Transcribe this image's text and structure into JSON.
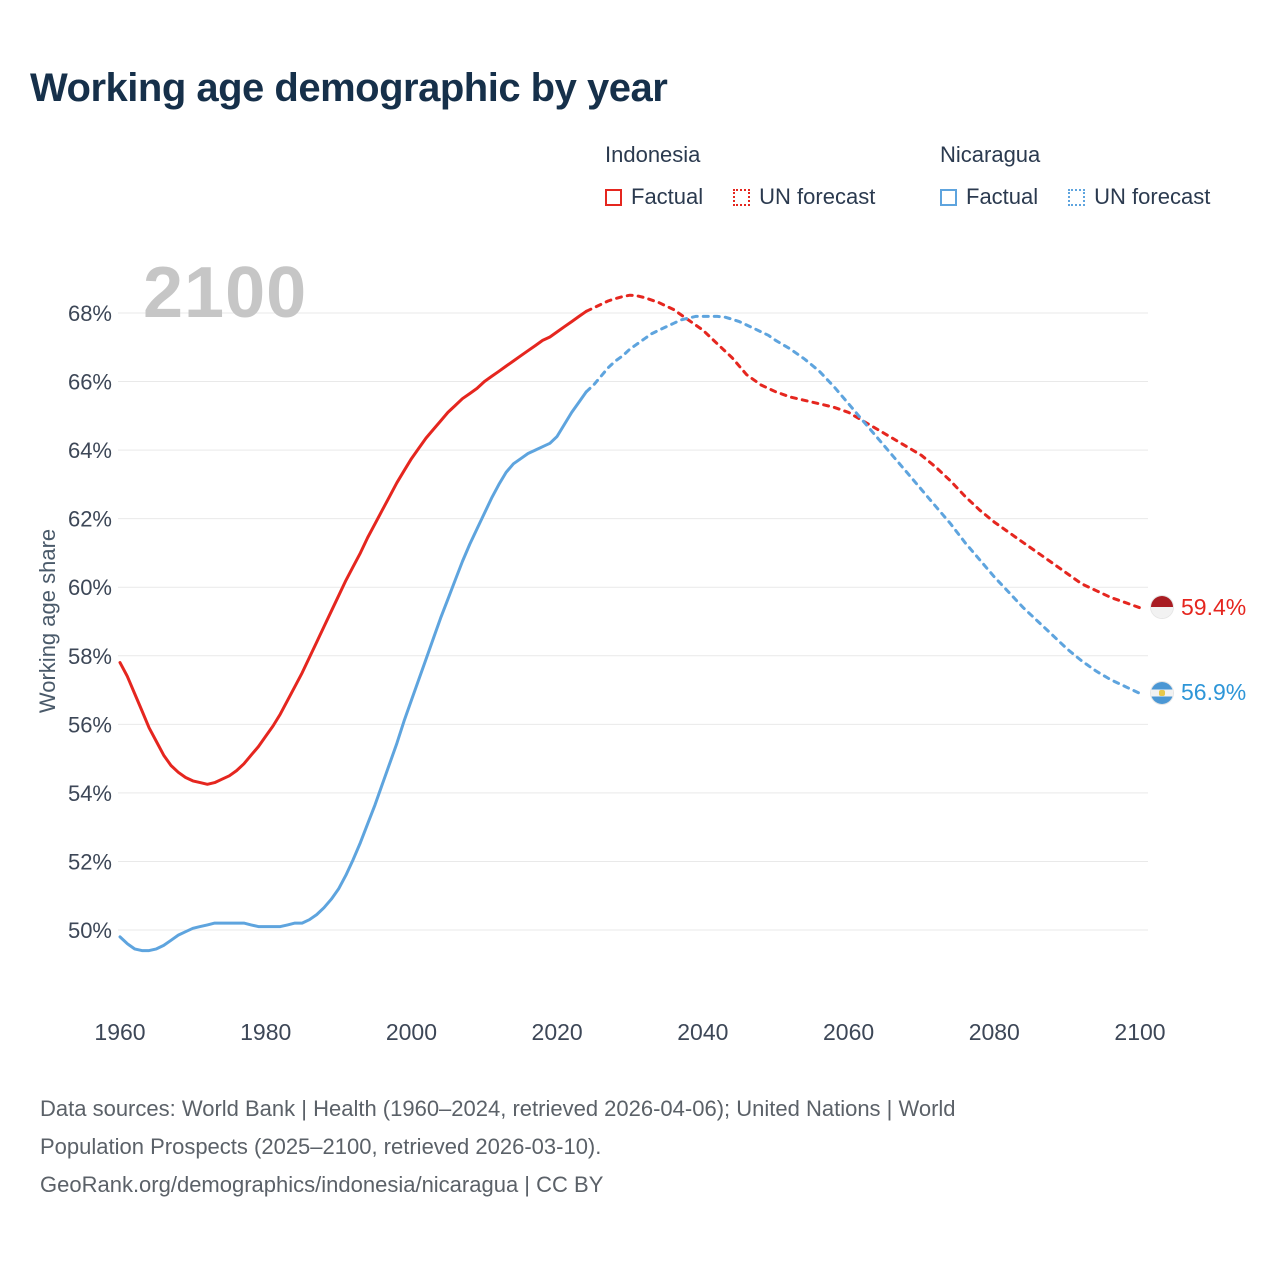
{
  "chart_data": {
    "type": "line",
    "title": "Working age demographic by year",
    "xlabel": "",
    "ylabel": "Working age share",
    "watermark": "2100",
    "xlim": [
      1960,
      2100
    ],
    "ylim": [
      49,
      69
    ],
    "xticks": [
      1960,
      1980,
      2000,
      2020,
      2040,
      2060,
      2080,
      2100
    ],
    "yticks": [
      50,
      52,
      54,
      56,
      58,
      60,
      62,
      64,
      66,
      68
    ],
    "ytick_suffix": "%",
    "grid": "horizontal",
    "legend_position": "top-right",
    "legend": {
      "groups": [
        {
          "label": "Indonesia",
          "color": "#e5261f",
          "items": [
            {
              "label": "Factual",
              "style": "solid"
            },
            {
              "label": "UN forecast",
              "style": "dotted"
            }
          ]
        },
        {
          "label": "Nicaragua",
          "color": "#5ea4de",
          "items": [
            {
              "label": "Factual",
              "style": "solid"
            },
            {
              "label": "UN forecast",
              "style": "dotted"
            }
          ]
        }
      ]
    },
    "series": [
      {
        "name": "Indonesia — Factual",
        "color": "#e5261f",
        "dash": "solid",
        "points": [
          [
            1960,
            57.8
          ],
          [
            1961,
            57.4
          ],
          [
            1962,
            56.9
          ],
          [
            1963,
            56.4
          ],
          [
            1964,
            55.9
          ],
          [
            1965,
            55.5
          ],
          [
            1966,
            55.1
          ],
          [
            1967,
            54.8
          ],
          [
            1968,
            54.6
          ],
          [
            1969,
            54.45
          ],
          [
            1970,
            54.35
          ],
          [
            1971,
            54.3
          ],
          [
            1972,
            54.25
          ],
          [
            1973,
            54.3
          ],
          [
            1974,
            54.4
          ],
          [
            1975,
            54.5
          ],
          [
            1976,
            54.65
          ],
          [
            1977,
            54.85
          ],
          [
            1978,
            55.1
          ],
          [
            1979,
            55.35
          ],
          [
            1980,
            55.65
          ],
          [
            1981,
            55.95
          ],
          [
            1982,
            56.3
          ],
          [
            1983,
            56.7
          ],
          [
            1984,
            57.1
          ],
          [
            1985,
            57.5
          ],
          [
            1986,
            57.95
          ],
          [
            1987,
            58.4
          ],
          [
            1988,
            58.85
          ],
          [
            1989,
            59.3
          ],
          [
            1990,
            59.75
          ],
          [
            1991,
            60.2
          ],
          [
            1992,
            60.6
          ],
          [
            1993,
            61.0
          ],
          [
            1994,
            61.45
          ],
          [
            1995,
            61.85
          ],
          [
            1996,
            62.25
          ],
          [
            1997,
            62.65
          ],
          [
            1998,
            63.05
          ],
          [
            1999,
            63.4
          ],
          [
            2000,
            63.75
          ],
          [
            2001,
            64.05
          ],
          [
            2002,
            64.35
          ],
          [
            2003,
            64.6
          ],
          [
            2004,
            64.85
          ],
          [
            2005,
            65.1
          ],
          [
            2006,
            65.3
          ],
          [
            2007,
            65.5
          ],
          [
            2008,
            65.65
          ],
          [
            2009,
            65.8
          ],
          [
            2010,
            66.0
          ],
          [
            2011,
            66.15
          ],
          [
            2012,
            66.3
          ],
          [
            2013,
            66.45
          ],
          [
            2014,
            66.6
          ],
          [
            2015,
            66.75
          ],
          [
            2016,
            66.9
          ],
          [
            2017,
            67.05
          ],
          [
            2018,
            67.2
          ],
          [
            2019,
            67.3
          ],
          [
            2020,
            67.45
          ],
          [
            2021,
            67.6
          ],
          [
            2022,
            67.75
          ],
          [
            2023,
            67.9
          ],
          [
            2024,
            68.05
          ]
        ]
      },
      {
        "name": "Indonesia — UN forecast",
        "color": "#e5261f",
        "dash": "dashed",
        "points": [
          [
            2024,
            68.05
          ],
          [
            2025,
            68.15
          ],
          [
            2026,
            68.25
          ],
          [
            2027,
            68.35
          ],
          [
            2028,
            68.42
          ],
          [
            2029,
            68.48
          ],
          [
            2030,
            68.52
          ],
          [
            2031,
            68.5
          ],
          [
            2032,
            68.45
          ],
          [
            2034,
            68.3
          ],
          [
            2036,
            68.1
          ],
          [
            2038,
            67.8
          ],
          [
            2040,
            67.5
          ],
          [
            2042,
            67.1
          ],
          [
            2044,
            66.7
          ],
          [
            2046,
            66.2
          ],
          [
            2048,
            65.9
          ],
          [
            2050,
            65.7
          ],
          [
            2052,
            65.55
          ],
          [
            2054,
            65.45
          ],
          [
            2056,
            65.35
          ],
          [
            2058,
            65.25
          ],
          [
            2060,
            65.1
          ],
          [
            2062,
            64.85
          ],
          [
            2064,
            64.6
          ],
          [
            2066,
            64.35
          ],
          [
            2068,
            64.1
          ],
          [
            2070,
            63.85
          ],
          [
            2072,
            63.5
          ],
          [
            2074,
            63.1
          ],
          [
            2076,
            62.65
          ],
          [
            2078,
            62.25
          ],
          [
            2080,
            61.9
          ],
          [
            2082,
            61.6
          ],
          [
            2084,
            61.3
          ],
          [
            2086,
            61.0
          ],
          [
            2088,
            60.7
          ],
          [
            2090,
            60.4
          ],
          [
            2092,
            60.1
          ],
          [
            2094,
            59.9
          ],
          [
            2096,
            59.7
          ],
          [
            2098,
            59.55
          ],
          [
            2100,
            59.4
          ]
        ]
      },
      {
        "name": "Nicaragua — Factual",
        "color": "#5ea4de",
        "dash": "solid",
        "points": [
          [
            1960,
            49.8
          ],
          [
            1961,
            49.6
          ],
          [
            1962,
            49.45
          ],
          [
            1963,
            49.4
          ],
          [
            1964,
            49.4
          ],
          [
            1965,
            49.45
          ],
          [
            1966,
            49.55
          ],
          [
            1967,
            49.7
          ],
          [
            1968,
            49.85
          ],
          [
            1969,
            49.95
          ],
          [
            1970,
            50.05
          ],
          [
            1971,
            50.1
          ],
          [
            1972,
            50.15
          ],
          [
            1973,
            50.2
          ],
          [
            1974,
            50.2
          ],
          [
            1975,
            50.2
          ],
          [
            1976,
            50.2
          ],
          [
            1977,
            50.2
          ],
          [
            1978,
            50.15
          ],
          [
            1979,
            50.1
          ],
          [
            1980,
            50.1
          ],
          [
            1981,
            50.1
          ],
          [
            1982,
            50.1
          ],
          [
            1983,
            50.15
          ],
          [
            1984,
            50.2
          ],
          [
            1985,
            50.2
          ],
          [
            1986,
            50.3
          ],
          [
            1987,
            50.45
          ],
          [
            1988,
            50.65
          ],
          [
            1989,
            50.9
          ],
          [
            1990,
            51.2
          ],
          [
            1991,
            51.6
          ],
          [
            1992,
            52.05
          ],
          [
            1993,
            52.55
          ],
          [
            1994,
            53.1
          ],
          [
            1995,
            53.65
          ],
          [
            1996,
            54.25
          ],
          [
            1997,
            54.85
          ],
          [
            1998,
            55.45
          ],
          [
            1999,
            56.1
          ],
          [
            2000,
            56.7
          ],
          [
            2001,
            57.3
          ],
          [
            2002,
            57.9
          ],
          [
            2003,
            58.5
          ],
          [
            2004,
            59.1
          ],
          [
            2005,
            59.65
          ],
          [
            2006,
            60.2
          ],
          [
            2007,
            60.75
          ],
          [
            2008,
            61.25
          ],
          [
            2009,
            61.7
          ],
          [
            2010,
            62.15
          ],
          [
            2011,
            62.6
          ],
          [
            2012,
            63.0
          ],
          [
            2013,
            63.35
          ],
          [
            2014,
            63.6
          ],
          [
            2015,
            63.75
          ],
          [
            2016,
            63.9
          ],
          [
            2017,
            64.0
          ],
          [
            2018,
            64.1
          ],
          [
            2019,
            64.2
          ],
          [
            2020,
            64.4
          ],
          [
            2021,
            64.75
          ],
          [
            2022,
            65.1
          ],
          [
            2023,
            65.4
          ],
          [
            2024,
            65.7
          ]
        ]
      },
      {
        "name": "Nicaragua — UN forecast",
        "color": "#5ea4de",
        "dash": "dashed",
        "points": [
          [
            2024,
            65.7
          ],
          [
            2025,
            65.9
          ],
          [
            2026,
            66.15
          ],
          [
            2027,
            66.4
          ],
          [
            2028,
            66.6
          ],
          [
            2029,
            66.75
          ],
          [
            2030,
            66.95
          ],
          [
            2031,
            67.1
          ],
          [
            2032,
            67.25
          ],
          [
            2033,
            67.4
          ],
          [
            2034,
            67.5
          ],
          [
            2035,
            67.6
          ],
          [
            2036,
            67.7
          ],
          [
            2037,
            67.8
          ],
          [
            2038,
            67.85
          ],
          [
            2039,
            67.9
          ],
          [
            2040,
            67.9
          ],
          [
            2041,
            67.9
          ],
          [
            2042,
            67.9
          ],
          [
            2043,
            67.88
          ],
          [
            2044,
            67.82
          ],
          [
            2045,
            67.75
          ],
          [
            2046,
            67.65
          ],
          [
            2047,
            67.55
          ],
          [
            2048,
            67.45
          ],
          [
            2049,
            67.35
          ],
          [
            2050,
            67.2
          ],
          [
            2052,
            66.95
          ],
          [
            2054,
            66.65
          ],
          [
            2056,
            66.3
          ],
          [
            2058,
            65.85
          ],
          [
            2060,
            65.35
          ],
          [
            2062,
            64.85
          ],
          [
            2064,
            64.35
          ],
          [
            2066,
            63.85
          ],
          [
            2068,
            63.35
          ],
          [
            2070,
            62.85
          ],
          [
            2072,
            62.35
          ],
          [
            2074,
            61.85
          ],
          [
            2076,
            61.3
          ],
          [
            2078,
            60.8
          ],
          [
            2080,
            60.3
          ],
          [
            2082,
            59.85
          ],
          [
            2084,
            59.4
          ],
          [
            2086,
            59.0
          ],
          [
            2088,
            58.6
          ],
          [
            2090,
            58.2
          ],
          [
            2092,
            57.85
          ],
          [
            2094,
            57.55
          ],
          [
            2096,
            57.3
          ],
          [
            2098,
            57.1
          ],
          [
            2100,
            56.9
          ]
        ]
      }
    ],
    "end_labels": [
      {
        "text": "59.4%",
        "value": 59.4,
        "color": "#e5261f",
        "flag": "indonesia"
      },
      {
        "text": "56.9%",
        "value": 56.9,
        "color": "#2e96d8",
        "flag": "nicaragua"
      }
    ]
  },
  "footer": {
    "line1": "Data sources: World Bank | Health (1960–2024, retrieved 2026-04-06); United Nations | World",
    "line2": "Population Prospects (2025–2100, retrieved 2026-03-10).",
    "line3": "GeoRank.org/demographics/indonesia/nicaragua | CC BY"
  }
}
